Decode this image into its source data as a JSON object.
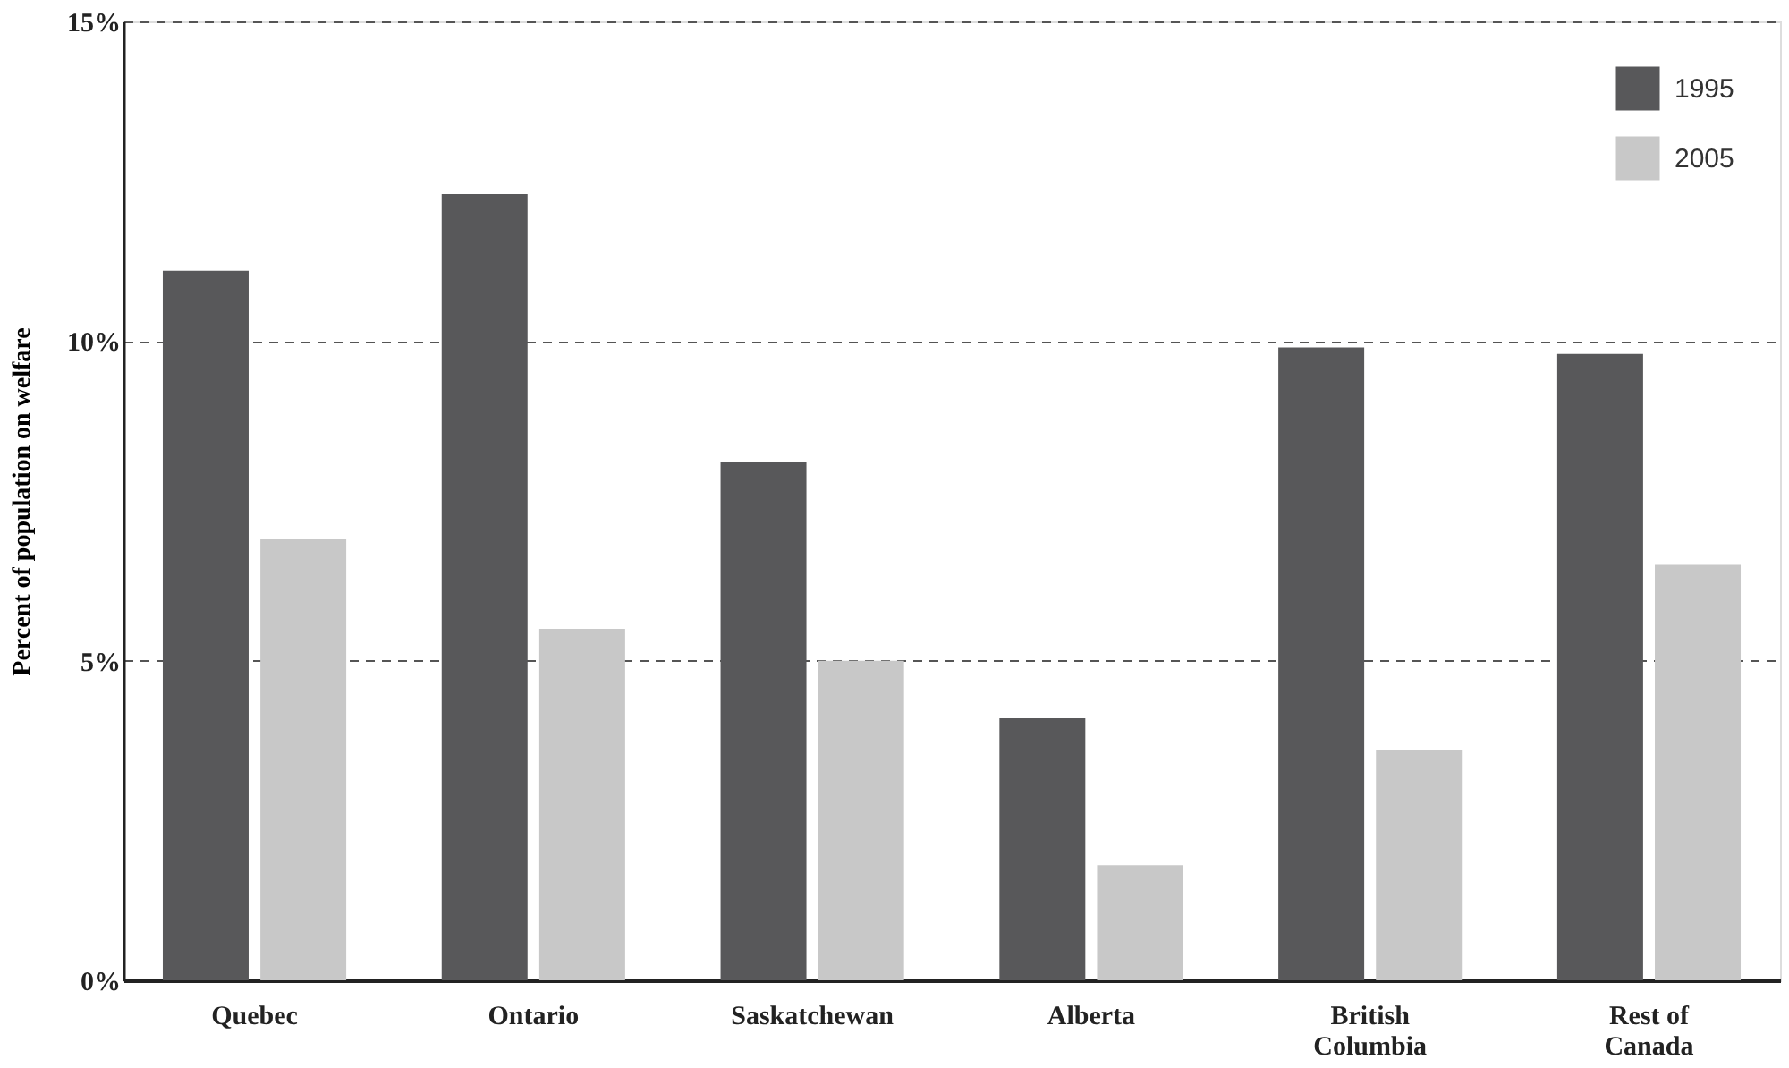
{
  "chart_data": {
    "type": "bar",
    "ylabel": "Percent of population on welfare",
    "categories": [
      "Quebec",
      "Ontario",
      "Saskatchewan",
      "Alberta",
      "British Columbia",
      "Rest of Canada"
    ],
    "series": [
      {
        "name": "1995",
        "color": "#58585a",
        "values": [
          11.1,
          12.3,
          8.1,
          4.1,
          9.9,
          9.8
        ]
      },
      {
        "name": "2005",
        "color": "#c8c8c8",
        "values": [
          6.9,
          5.5,
          5.0,
          1.8,
          3.6,
          6.5
        ]
      }
    ],
    "ylim": [
      0,
      15
    ],
    "yticks": [
      {
        "value": 0,
        "label": "0%"
      },
      {
        "value": 5,
        "label": "5%"
      },
      {
        "value": 10,
        "label": "10%"
      },
      {
        "value": 15,
        "label": "15%"
      }
    ],
    "grid": "y",
    "line_style": "dashed",
    "legend": "top right"
  }
}
